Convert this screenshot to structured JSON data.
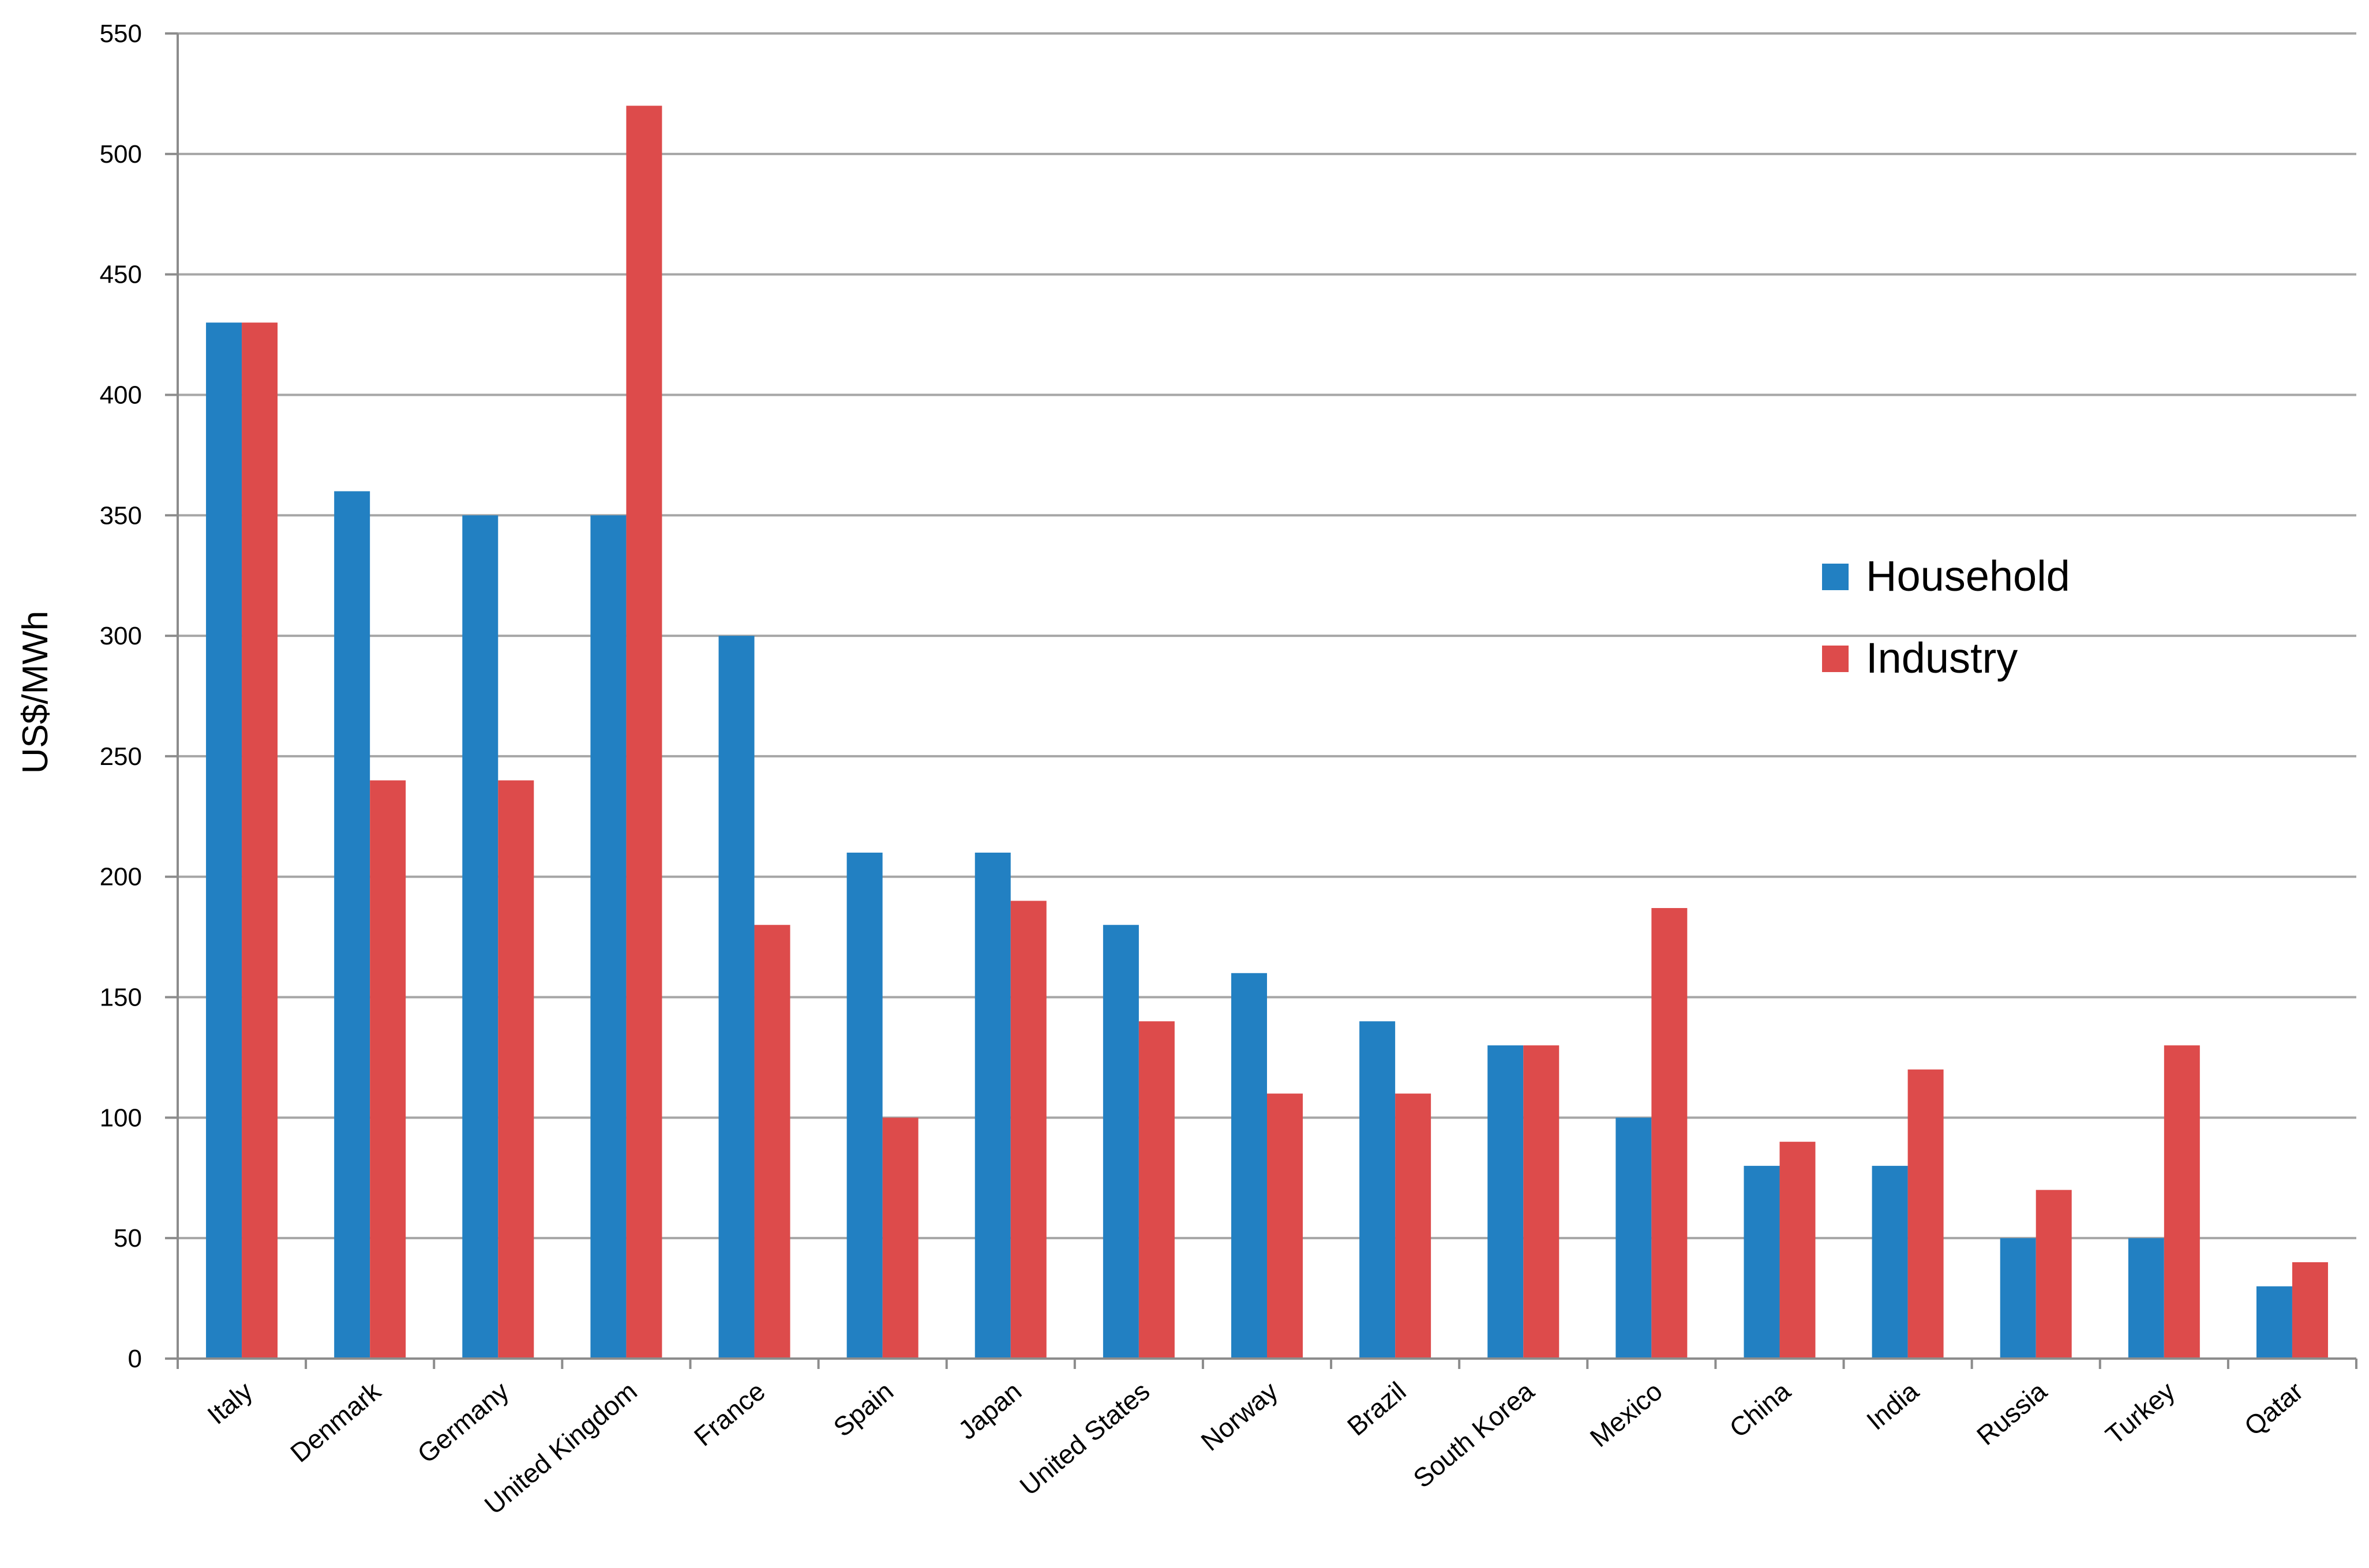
{
  "chart_data": {
    "type": "bar",
    "title": "",
    "xlabel": "",
    "ylabel": "US$/MWh",
    "ylim": [
      0,
      550
    ],
    "yticks": [
      0,
      50,
      100,
      150,
      200,
      250,
      300,
      350,
      400,
      450,
      500,
      550
    ],
    "grid": true,
    "legend_position": "right",
    "categories": [
      "Italy",
      "Denmark",
      "Germany",
      "United Kingdom",
      "France",
      "Spain",
      "Japan",
      "United States",
      "Norway",
      "Brazil",
      "South Korea",
      "Mexico",
      "China",
      "India",
      "Russia",
      "Turkey",
      "Qatar"
    ],
    "series": [
      {
        "name": "Household",
        "color": "#2280c2",
        "values": [
          430,
          360,
          350,
          350,
          300,
          210,
          210,
          180,
          160,
          140,
          130,
          100,
          80,
          80,
          50,
          50,
          30
        ]
      },
      {
        "name": "Industry",
        "color": "#dd4b4b",
        "values": [
          430,
          240,
          240,
          520,
          180,
          100,
          190,
          140,
          110,
          110,
          130,
          187,
          90,
          120,
          70,
          130,
          40
        ]
      }
    ]
  }
}
